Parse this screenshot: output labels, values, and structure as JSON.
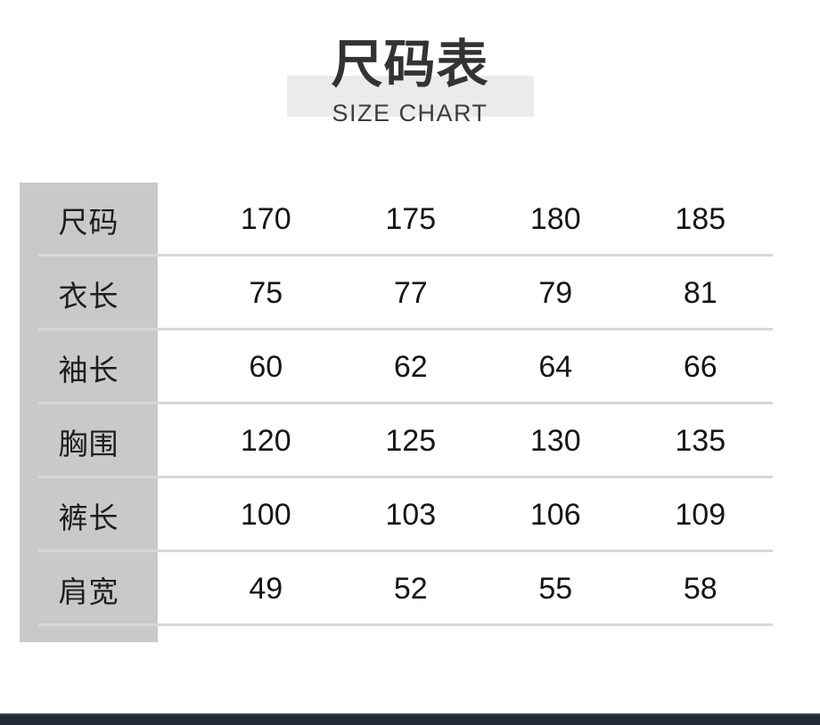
{
  "header": {
    "title": "尺码表",
    "subtitle": "SIZE CHART"
  },
  "chart_data": {
    "type": "table",
    "title": "尺码表",
    "subtitle": "SIZE CHART",
    "size_columns": [
      "170",
      "175",
      "180",
      "185"
    ],
    "rows": [
      {
        "label": "尺码",
        "values": [
          "170",
          "175",
          "180",
          "185"
        ]
      },
      {
        "label": "衣长",
        "values": [
          "75",
          "77",
          "79",
          "81"
        ]
      },
      {
        "label": "袖长",
        "values": [
          "60",
          "62",
          "64",
          "66"
        ]
      },
      {
        "label": "胸围",
        "values": [
          "120",
          "125",
          "130",
          "135"
        ]
      },
      {
        "label": "裤长",
        "values": [
          "100",
          "103",
          "106",
          "109"
        ]
      },
      {
        "label": "肩宽",
        "values": [
          "49",
          "52",
          "55",
          "58"
        ]
      }
    ]
  },
  "colors": {
    "label_column_bg": "#c9c9c9",
    "title_band_bg": "#ebebeb",
    "row_separator": "#d7d7d7",
    "bottom_bar": "#212a39",
    "text": "#1d1d1d"
  }
}
